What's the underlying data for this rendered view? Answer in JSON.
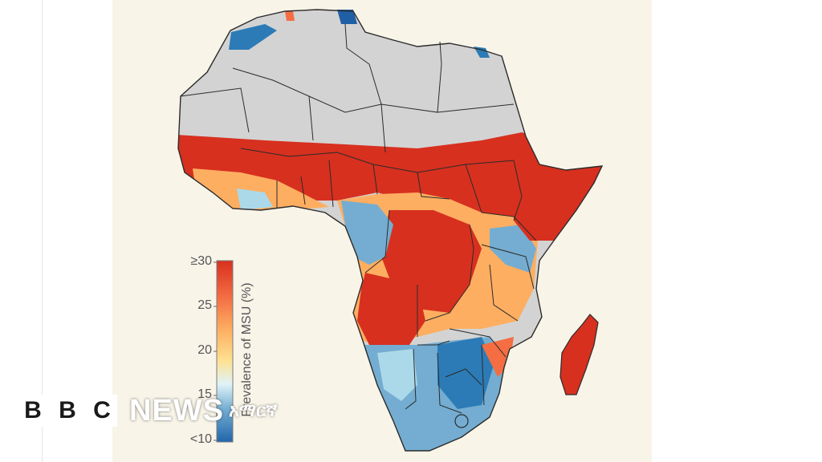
{
  "legend": {
    "title": "Prevalence of MSU (%)",
    "ticks": [
      {
        "label": "≥30",
        "value": 30
      },
      {
        "label": "25",
        "value": 25
      },
      {
        "label": "20",
        "value": 20
      },
      {
        "label": "15",
        "value": 15
      },
      {
        "label": "<10",
        "value": 10
      }
    ],
    "colors": [
      "#d7301f",
      "#f46d43",
      "#fdae61",
      "#fee090",
      "#e0f3f8",
      "#74add1",
      "#2c7bb6",
      "#1f5fa6"
    ]
  },
  "map": {
    "region": "Africa",
    "no_data_color": "#d3d3d3",
    "high_color": "#d7301f",
    "low_color": "#2c7bb6",
    "border_color": "#2b2b2b"
  },
  "branding": {
    "blocks": [
      "B",
      "B",
      "C"
    ],
    "news": "NEWS",
    "service": "አማርኛ"
  }
}
